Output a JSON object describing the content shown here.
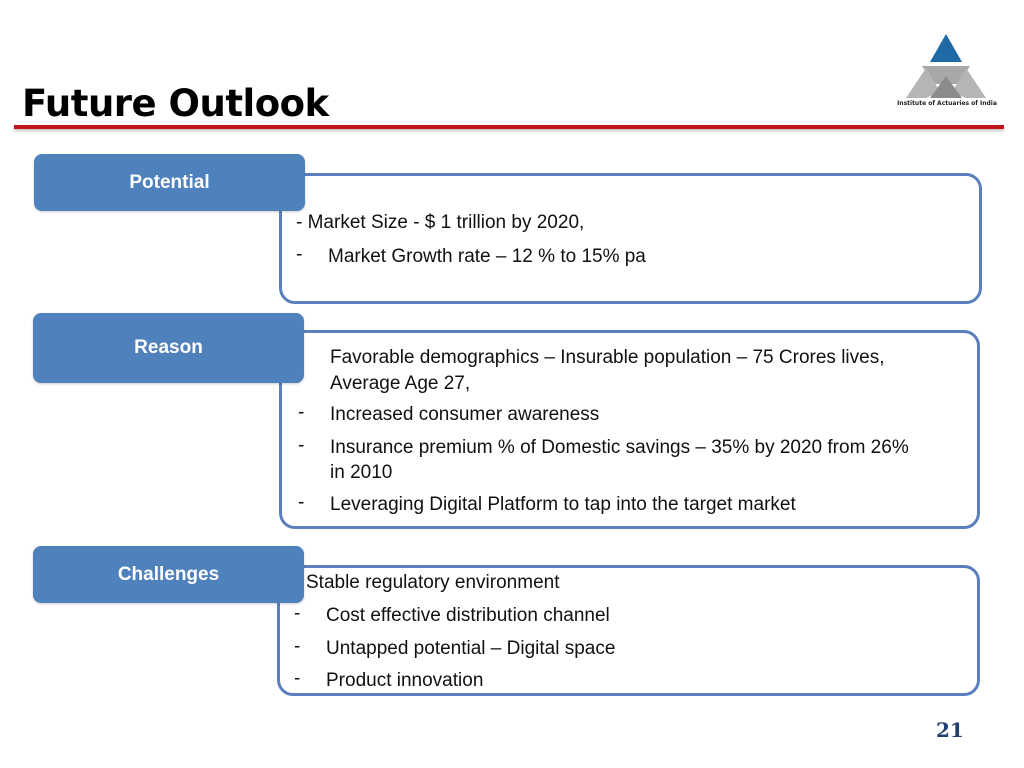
{
  "title": "Future Outlook",
  "logo": {
    "text": "Institute of Actuaries of India"
  },
  "sections": [
    {
      "label": "Potential",
      "items": [
        {
          "text": "- Market Size  - $ 1 trillion  by 2020,",
          "bullet": ""
        },
        {
          "text": "Market Growth rate – 12 % to 15% pa",
          "bullet": "-"
        }
      ]
    },
    {
      "label": "Reason",
      "items": [
        {
          "text": "Favorable demographics – Insurable population – 75 Crores lives,",
          "bullet": ""
        },
        {
          "text": "Average Age 27,",
          "bullet": ""
        },
        {
          "text": "Increased consumer awareness",
          "bullet": "-"
        },
        {
          "text": "Insurance premium % of Domestic savings – 35% by 2020 from 26%",
          "bullet": "-"
        },
        {
          "text": "in 2010",
          "bullet": ""
        },
        {
          "text": "Leveraging Digital Platform to tap into the target market",
          "bullet": "-"
        }
      ]
    },
    {
      "label": "Challenges",
      "items": [
        {
          "text": "Stable regulatory environment",
          "bullet": ""
        },
        {
          "text": "Cost effective distribution channel",
          "bullet": "-"
        },
        {
          "text": "Untapped potential – Digital space",
          "bullet": "-"
        },
        {
          "text": "Product innovation",
          "bullet": "-"
        }
      ]
    }
  ],
  "page_number": "21",
  "colors": {
    "accent_rule": "#c0141a",
    "tag_fill": "#4f81bd",
    "card_border": "#5b7fbd",
    "page_number": "#1f3e6c"
  }
}
